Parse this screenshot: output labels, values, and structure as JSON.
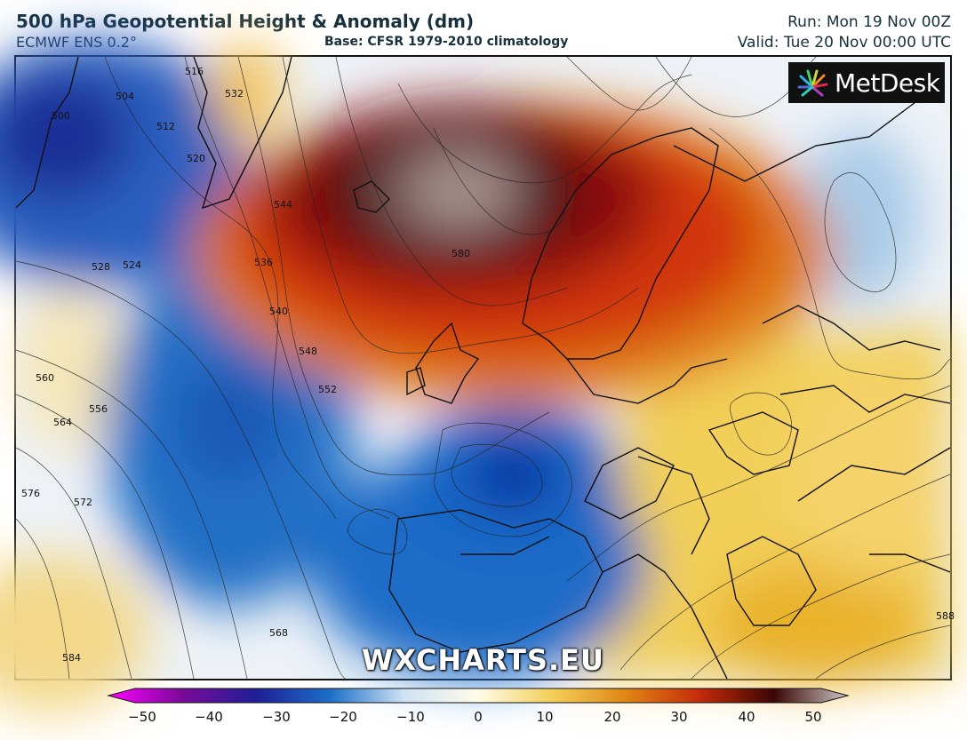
{
  "header": {
    "title": "500 hPa Geopotential Height & Anomaly (dm)",
    "model": "ECMWF ENS 0.2°",
    "base": "Base: CFSR 1979-2010 climatology",
    "run": "Run: Mon 19 Nov 00Z",
    "valid": "Valid: Tue 20 Nov 00:00 UTC"
  },
  "logo": {
    "text": "MetDesk",
    "icon": "metdesk-starburst-icon"
  },
  "watermark": "WXCHARTS.EU",
  "colorbar": {
    "min": -50,
    "max": 50,
    "ticks": [
      "−50",
      "−40",
      "−30",
      "−20",
      "−10",
      "0",
      "10",
      "20",
      "30",
      "40",
      "50"
    ],
    "colors": [
      "#ff00ff",
      "#7a0a9a",
      "#1e1e96",
      "#1c6fc9",
      "#cfe3f4",
      "#fffbe9",
      "#f2cf58",
      "#e08616",
      "#c52a0a",
      "#6d0c06",
      "#b0a7a6"
    ]
  },
  "contour_labels": [
    {
      "text": "500"
    },
    {
      "text": "504"
    },
    {
      "text": "512"
    },
    {
      "text": "516"
    },
    {
      "text": "520"
    },
    {
      "text": "524"
    },
    {
      "text": "528"
    },
    {
      "text": "532"
    },
    {
      "text": "536"
    },
    {
      "text": "540"
    },
    {
      "text": "544"
    },
    {
      "text": "548"
    },
    {
      "text": "552"
    },
    {
      "text": "556"
    },
    {
      "text": "560"
    },
    {
      "text": "564"
    },
    {
      "text": "568"
    },
    {
      "text": "572"
    },
    {
      "text": "576"
    },
    {
      "text": "580"
    },
    {
      "text": "584"
    },
    {
      "text": "588"
    }
  ]
}
